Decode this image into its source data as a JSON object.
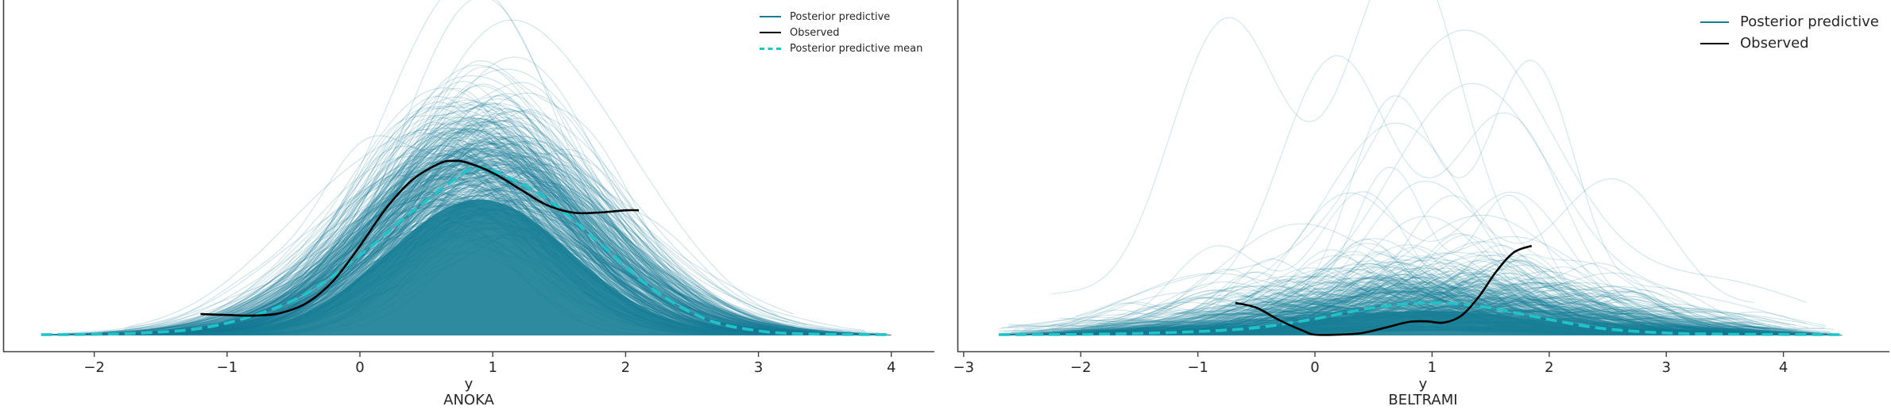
{
  "figure": {
    "background": "#ffffff",
    "colors": {
      "posterior_predictive": "#167d95",
      "observed": "#000000",
      "posterior_predictive_mean": "#1ec4c8",
      "axis": "#404040",
      "text": "#262626"
    }
  },
  "chart_data": [
    {
      "type": "line",
      "title": "ANOKA",
      "xlabel": "y",
      "ylabel": "",
      "xlim": [
        -2.6,
        4.3
      ],
      "xticks": [
        -2,
        -1,
        0,
        1,
        2,
        3,
        4
      ],
      "xtick_labels": [
        "−2",
        "−1",
        "0",
        "1",
        "2",
        "3",
        "4"
      ],
      "yticks": [],
      "grid": false,
      "legend_position": "upper right",
      "legend": [
        "Posterior predictive",
        "Observed",
        "Posterior predictive mean"
      ],
      "series": [
        {
          "name": "Posterior predictive",
          "kind": "band_of_many_kde_curves",
          "center": 0.9,
          "sd": 0.75,
          "x_range": [
            -2.4,
            4.0
          ],
          "peak_density_typical": 0.52,
          "peak_density_max": 0.95
        },
        {
          "name": "Observed",
          "x": [
            -1.2,
            -1.0,
            -0.8,
            -0.6,
            -0.4,
            -0.2,
            0.0,
            0.2,
            0.4,
            0.6,
            0.7,
            0.8,
            1.0,
            1.2,
            1.4,
            1.6,
            1.8,
            2.0,
            2.1
          ],
          "y": [
            0.065,
            0.062,
            0.06,
            0.068,
            0.1,
            0.17,
            0.28,
            0.4,
            0.49,
            0.54,
            0.548,
            0.543,
            0.51,
            0.46,
            0.41,
            0.385,
            0.385,
            0.392,
            0.392
          ]
        },
        {
          "name": "Posterior predictive mean",
          "x": [
            -2.4,
            -2.0,
            -1.6,
            -1.2,
            -0.8,
            -0.4,
            0.0,
            0.4,
            0.8,
            0.9,
            1.0,
            1.4,
            1.8,
            2.2,
            2.6,
            3.0,
            3.4,
            4.0
          ],
          "y": [
            0.0,
            0.001,
            0.006,
            0.02,
            0.06,
            0.13,
            0.25,
            0.39,
            0.515,
            0.523,
            0.518,
            0.43,
            0.29,
            0.145,
            0.05,
            0.012,
            0.002,
            0.0
          ]
        }
      ]
    },
    {
      "type": "line",
      "title": "BELTRAMI",
      "xlabel": "y",
      "ylabel": "",
      "xlim": [
        -3.05,
        4.9
      ],
      "xticks": [
        -3,
        -2,
        -1,
        0,
        1,
        2,
        3,
        4
      ],
      "xtick_labels": [
        "−3",
        "−2",
        "−1",
        "0",
        "1",
        "2",
        "3",
        "4"
      ],
      "yticks": [],
      "grid": false,
      "legend_position": "upper right",
      "legend": [
        "Posterior predictive",
        "Observed"
      ],
      "series": [
        {
          "name": "Posterior predictive",
          "kind": "band_of_many_kde_curves",
          "center": 0.95,
          "sd": 1.05,
          "x_range": [
            -2.7,
            4.5
          ],
          "peak_density_typical": 0.1,
          "peak_density_max": 0.95
        },
        {
          "name": "Observed",
          "x": [
            -0.68,
            -0.5,
            -0.3,
            -0.1,
            0.0,
            0.2,
            0.4,
            0.6,
            0.8,
            0.95,
            1.1,
            1.25,
            1.4,
            1.55,
            1.7,
            1.85
          ],
          "y": [
            0.1,
            0.085,
            0.045,
            0.012,
            0.0,
            0.0,
            0.005,
            0.022,
            0.04,
            0.042,
            0.038,
            0.06,
            0.12,
            0.2,
            0.26,
            0.28
          ]
        },
        {
          "name": "Posterior predictive mean",
          "x": [
            -2.7,
            -2.0,
            -1.5,
            -1.0,
            -0.5,
            0.0,
            0.5,
            0.95,
            1.4,
            1.9,
            2.4,
            2.9,
            3.4,
            4.5
          ],
          "y": [
            0.0,
            0.001,
            0.004,
            0.01,
            0.022,
            0.05,
            0.085,
            0.1,
            0.09,
            0.055,
            0.022,
            0.007,
            0.002,
            0.0
          ]
        }
      ]
    }
  ],
  "panels": [
    {
      "name": "anoka",
      "xlabel": "y",
      "title": "ANOKA",
      "legend": [
        {
          "label": "Posterior predictive",
          "style": "solid",
          "color": "#167d95"
        },
        {
          "label": "Observed",
          "style": "solid",
          "color": "#000000"
        },
        {
          "label": "Posterior predictive mean",
          "style": "dashed",
          "color": "#1ec4c8"
        }
      ]
    },
    {
      "name": "beltrami",
      "xlabel": "y",
      "title": "BELTRAMI",
      "legend": [
        {
          "label": "Posterior predictive",
          "style": "solid",
          "color": "#167d95"
        },
        {
          "label": "Observed",
          "style": "solid",
          "color": "#000000"
        }
      ]
    }
  ]
}
